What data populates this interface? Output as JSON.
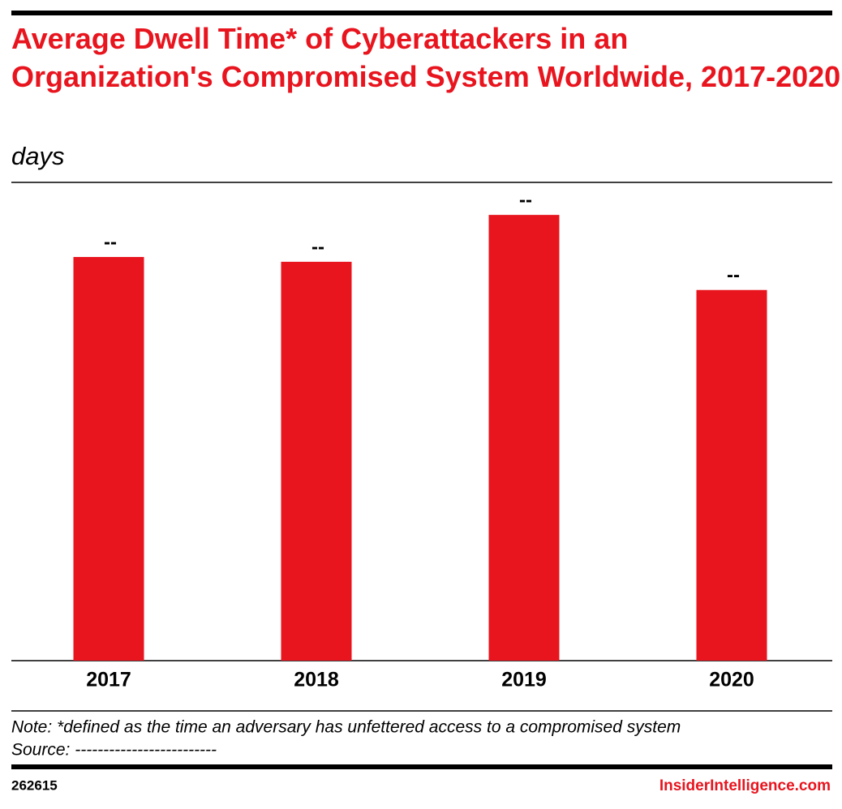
{
  "chart_data": {
    "type": "bar",
    "title": "Average Dwell Time* of Cyberattackers in an Organization's Compromised System Worldwide, 2017-2020",
    "subtitle": "days",
    "categories": [
      "2017",
      "2018",
      "2019",
      "2020"
    ],
    "values": [
      84.4,
      83.4,
      93.2,
      77.5
    ],
    "value_labels": [
      "--",
      "--",
      "--",
      "--"
    ],
    "color": "#e8141e",
    "ylim": [
      0,
      100
    ],
    "note": "Note: *defined as the time an adversary has unfettered access to a compromised system",
    "source": "Source: -------------------------",
    "chart_id": "262615",
    "brand": "InsiderIntelligence.com"
  }
}
